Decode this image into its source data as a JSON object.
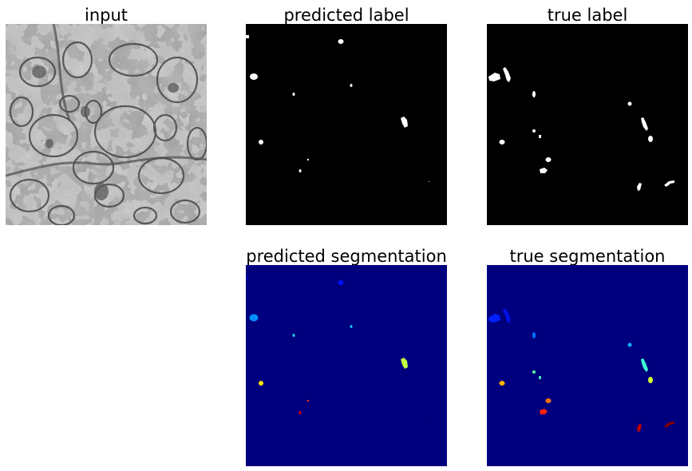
{
  "panels": {
    "input": {
      "title": "input",
      "content": "grayscale electron micrograph of neural tissue"
    },
    "predicted_label": {
      "title": "predicted label",
      "background": "#000000",
      "foreground": "#ffffff"
    },
    "true_label": {
      "title": "true label",
      "background": "#000000",
      "foreground": "#ffffff"
    },
    "predicted_segmentation": {
      "title": "predicted segmentation",
      "background": "#00007f",
      "colormap": "jet"
    },
    "true_segmentation": {
      "title": "true segmentation",
      "background": "#00007f",
      "colormap": "jet"
    }
  }
}
